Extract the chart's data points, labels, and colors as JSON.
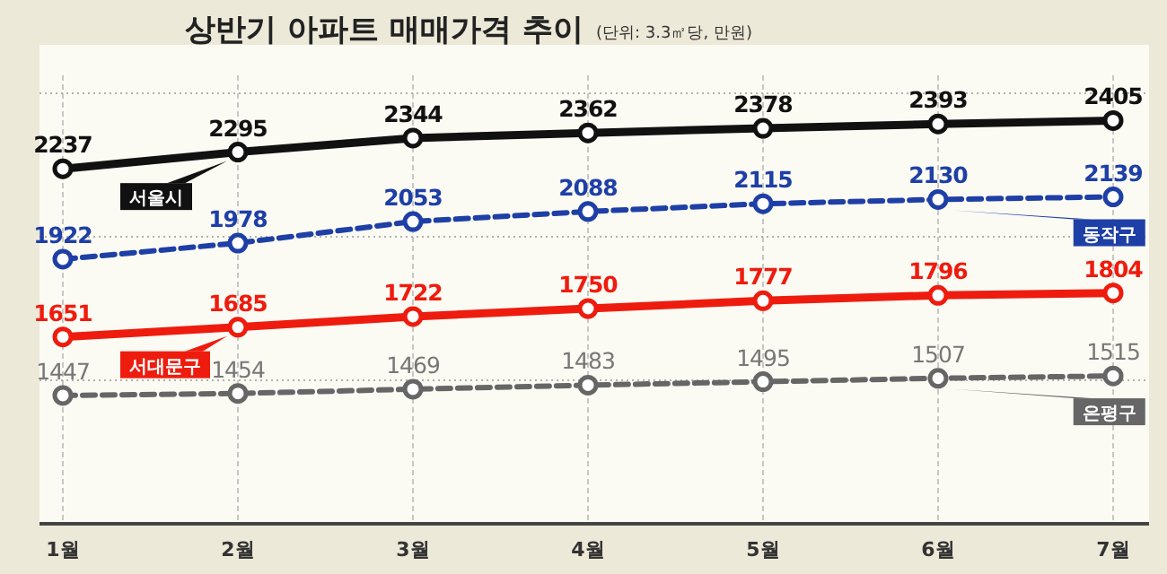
{
  "chart_data": {
    "type": "line",
    "title": "상반기 아파트 매매가격 추이",
    "subtitle": "(단위: 3.3㎡당, 만원)",
    "categories": [
      "1월",
      "2월",
      "3월",
      "4월",
      "5월",
      "6월",
      "7월"
    ],
    "ylim": [
      1000,
      2500
    ],
    "yticks": [
      {
        "value": 1500,
        "label": null
      },
      {
        "value": 2000,
        "label": null
      },
      {
        "value": 2500,
        "label": null
      }
    ],
    "grid": true,
    "marker": "circle",
    "data_labels": true,
    "series": [
      {
        "name": "서울시",
        "color": "#111111",
        "line_style": "solid",
        "values": [
          2237,
          2295,
          2344,
          2362,
          2378,
          2393,
          2405
        ]
      },
      {
        "name": "동작구",
        "color": "#1e3fa6",
        "line_style": "dashed",
        "values": [
          1922,
          1978,
          2053,
          2088,
          2115,
          2130,
          2139
        ]
      },
      {
        "name": "서대문구",
        "color": "#ee1c0e",
        "line_style": "solid",
        "values": [
          1651,
          1685,
          1722,
          1750,
          1777,
          1796,
          1804
        ]
      },
      {
        "name": "은평구",
        "color": "#666666",
        "line_style": "dashed",
        "values": [
          1447,
          1454,
          1469,
          1483,
          1495,
          1507,
          1515
        ]
      }
    ]
  }
}
